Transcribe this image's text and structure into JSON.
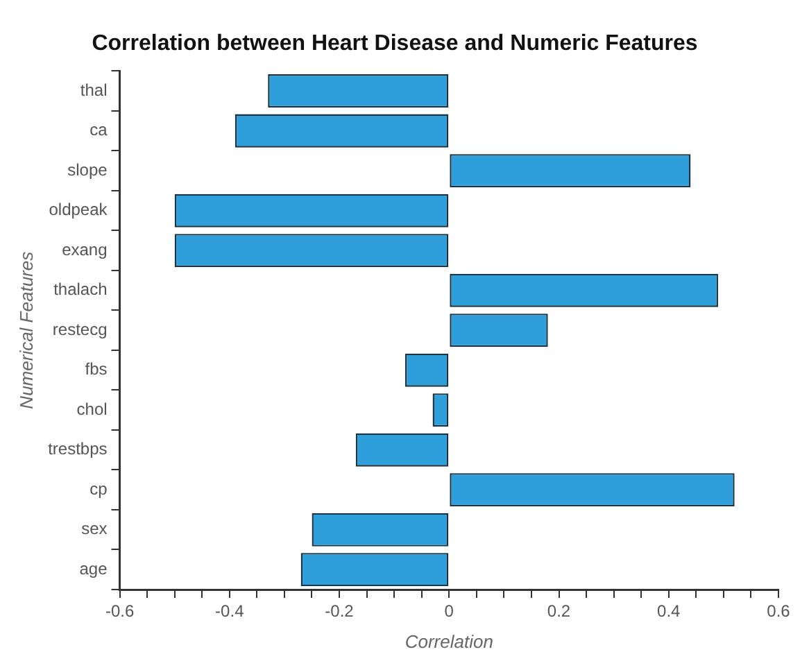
{
  "chart_data": {
    "type": "bar",
    "orientation": "horizontal",
    "title": "Correlation between Heart Disease and Numeric Features",
    "xlabel": "Correlation",
    "ylabel": "Numerical Features",
    "categories": [
      "thal",
      "ca",
      "slope",
      "oldpeak",
      "exang",
      "thalach",
      "restecg",
      "fbs",
      "chol",
      "trestbps",
      "cp",
      "sex",
      "age"
    ],
    "values": [
      -0.33,
      -0.39,
      0.44,
      -0.5,
      -0.5,
      0.49,
      0.18,
      -0.08,
      -0.03,
      -0.17,
      0.52,
      -0.25,
      -0.27
    ],
    "color": "#2f9fdb",
    "xlim": [
      -0.6,
      0.6
    ],
    "xticks": [
      -0.6,
      {
        "value": -0.55,
        "label": null
      },
      {
        "value": -0.5,
        "label": null
      },
      {
        "value": -0.45,
        "label": null
      },
      -0.4,
      {
        "value": -0.35,
        "label": null
      },
      {
        "value": -0.3,
        "label": null
      },
      {
        "value": -0.25,
        "label": null
      },
      -0.2,
      {
        "value": -0.15,
        "label": null
      },
      {
        "value": -0.1,
        "label": null
      },
      {
        "value": -0.05,
        "label": null
      },
      0,
      {
        "value": 0.05,
        "label": null
      },
      {
        "value": 0.1,
        "label": null
      },
      {
        "value": 0.15,
        "label": null
      },
      0.2,
      {
        "value": 0.25,
        "label": null
      },
      {
        "value": 0.3,
        "label": null
      },
      {
        "value": 0.35,
        "label": null
      },
      0.4,
      {
        "value": 0.45,
        "label": null
      },
      {
        "value": 0.5,
        "label": null
      },
      {
        "value": 0.55,
        "label": null
      },
      0.6
    ],
    "legend": false
  }
}
